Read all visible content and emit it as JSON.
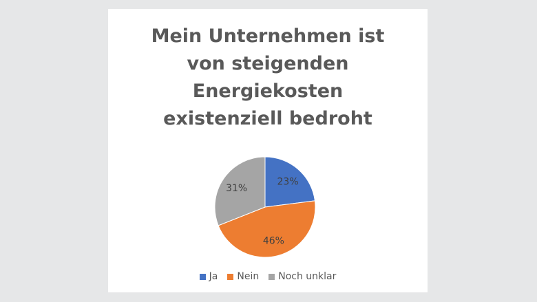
{
  "chart_data": {
    "type": "pie",
    "title_lines": [
      "Mein Unternehmen ist",
      "von steigenden",
      "Energiekosten",
      "existenziell bedroht"
    ],
    "slices": [
      {
        "name": "Ja",
        "value": 23,
        "label": "23%",
        "color": "#4472c4"
      },
      {
        "name": "Nein",
        "value": 46,
        "label": "46%",
        "color": "#ed7d31"
      },
      {
        "name": "Noch unklar",
        "value": 31,
        "label": "31%",
        "color": "#a5a5a5"
      }
    ],
    "legend_placement": "bottom"
  }
}
